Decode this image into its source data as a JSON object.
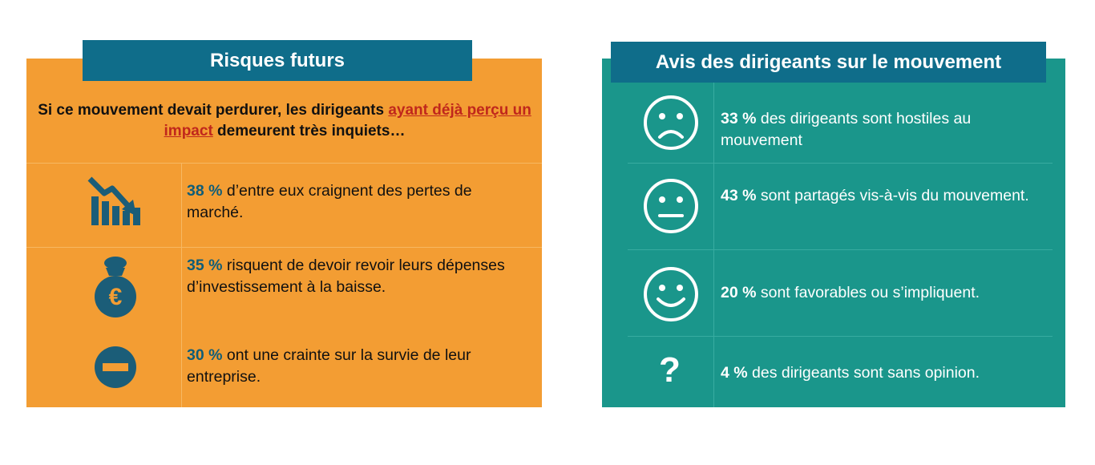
{
  "left": {
    "title": "Risques futurs",
    "intro_part1": "Si ce mouvement devait perdurer, les dirigeants ",
    "intro_highlight": "ayant déjà perçu un impact",
    "intro_part2": " demeurent très inquiets…",
    "rows": [
      {
        "icon": "declining-chart-icon",
        "pct": "38 %",
        "text": " d’entre eux craignent des pertes de marché."
      },
      {
        "icon": "euro-money-bag-icon",
        "pct": "35 %",
        "text": " risquent de devoir revoir leurs dépenses d’investissement à la baisse."
      },
      {
        "icon": "minus-circle-icon",
        "pct": "30 %",
        "text": " ont une crainte sur la survie de leur entreprise."
      }
    ]
  },
  "right": {
    "title": "Avis des dirigeants sur le mouvement",
    "rows": [
      {
        "icon": "sad-face-icon",
        "pct": "33 %",
        "text": " des dirigeants sont hostiles au mouvement"
      },
      {
        "icon": "neutral-face-icon",
        "pct": "43 %",
        "text": " sont partagés vis-à-vis du mouvement."
      },
      {
        "icon": "happy-face-icon",
        "pct": "20 %",
        "text": " sont favorables ou s’impliquent."
      },
      {
        "icon": "question-mark-icon",
        "icon_text": "?",
        "pct": "4 %",
        "text": " des dirigeants sont sans opinion."
      }
    ]
  },
  "colors": {
    "orange": "#f39d33",
    "teal": "#1a968b",
    "header_blue": "#0f6d8a",
    "highlight_red": "#c0271c",
    "icon_blue": "#1b5d78"
  }
}
